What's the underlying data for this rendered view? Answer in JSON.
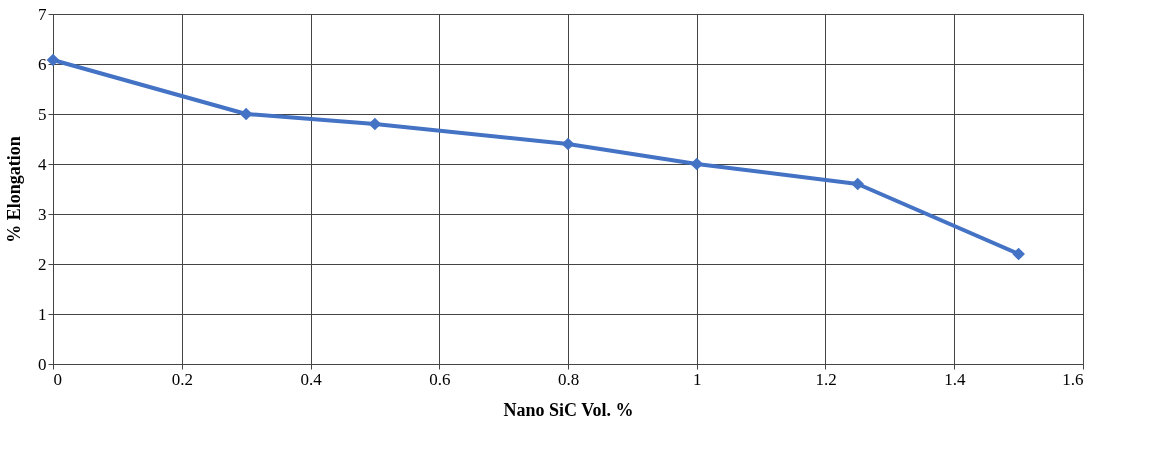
{
  "chart_data": {
    "type": "line",
    "xlabel": "Nano SiC Vol. %",
    "ylabel": "% Elongation",
    "x": [
      0,
      0.3,
      0.5,
      0.8,
      1,
      1.25,
      1.5
    ],
    "series": [
      {
        "color": "#4472c4",
        "values": [
          6.08,
          5.0,
          4.8,
          4.4,
          4.0,
          3.6,
          2.2
        ]
      }
    ],
    "xlim": [
      0,
      1.6
    ],
    "xticks": [
      0,
      0.2,
      0.4,
      0.6,
      0.8,
      1,
      1.2,
      1.4,
      1.6
    ],
    "ylim": [
      0,
      7
    ],
    "yticks": [
      0,
      1,
      2,
      3,
      4,
      5,
      6,
      7
    ],
    "grid": true,
    "marker": "diamond",
    "line_style": "solid"
  }
}
